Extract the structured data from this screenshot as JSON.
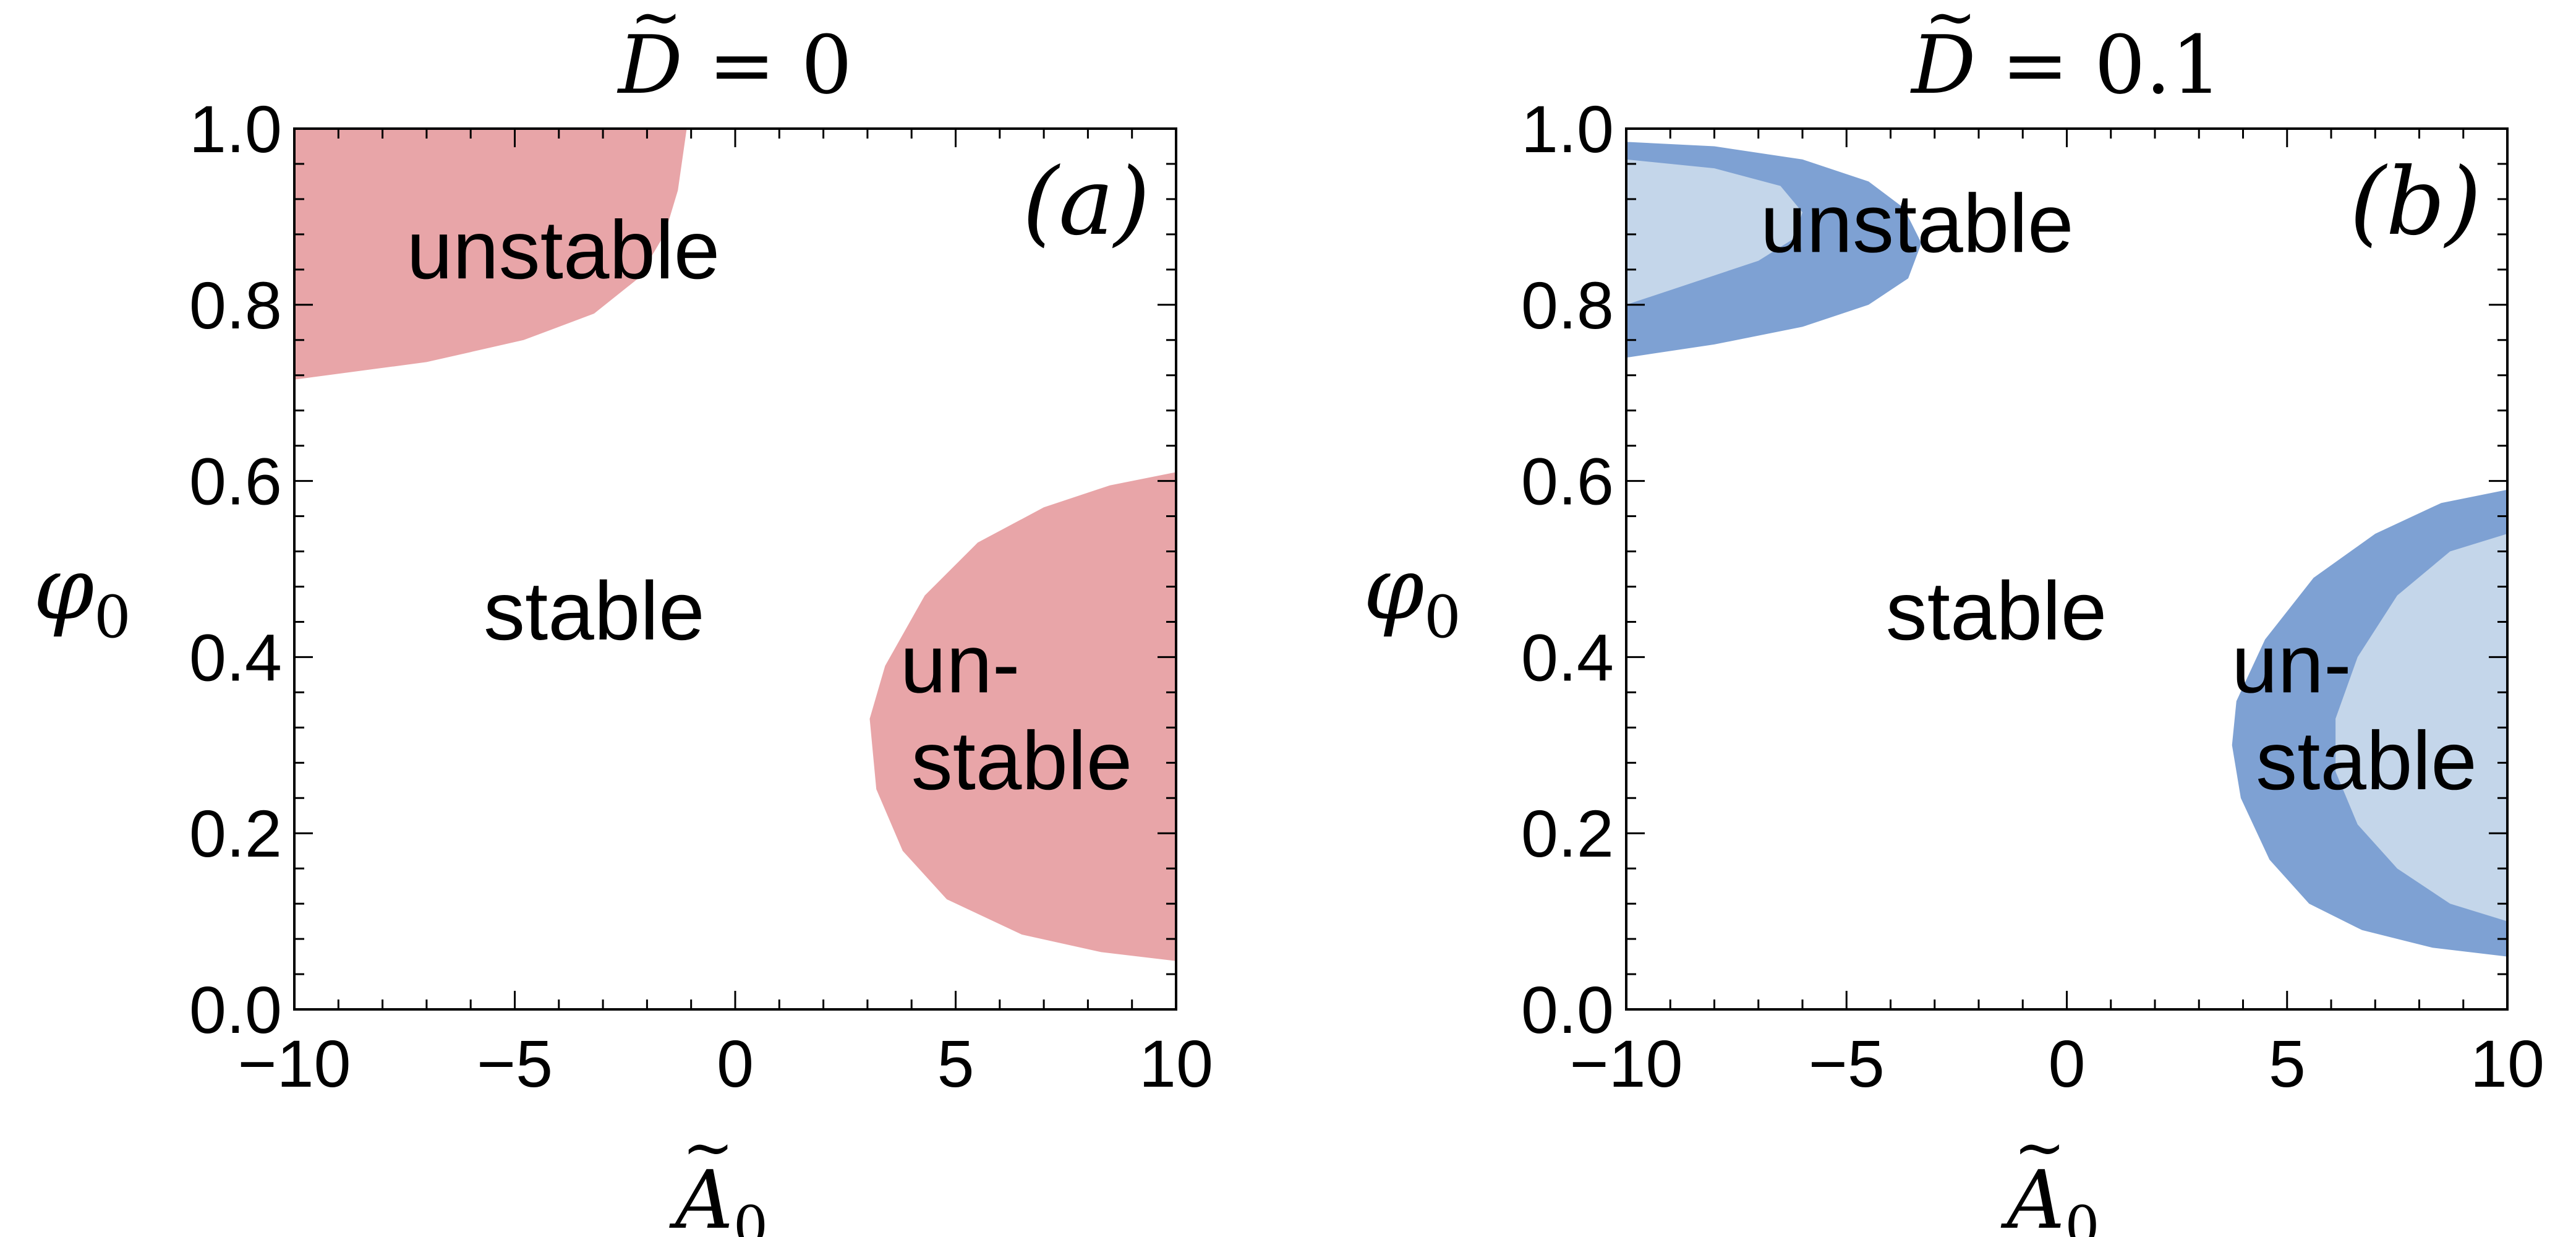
{
  "chart_data": [
    {
      "type": "area",
      "panel_label": "(a)",
      "title": {
        "symbol": "D",
        "mark": "~",
        "text": " = 0"
      },
      "xlabel": {
        "symbol": "A",
        "mark": "~",
        "sub": "0"
      },
      "ylabel": {
        "symbol": "φ",
        "sub": "0"
      },
      "xlim": [
        -10,
        10
      ],
      "ylim": [
        0,
        1
      ],
      "xticks": [
        -10,
        -5,
        0,
        5,
        10
      ],
      "xtick_labels": [
        "−10",
        "−5",
        "0",
        "5",
        "10"
      ],
      "yticks": [
        0,
        0.2,
        0.4,
        0.6,
        0.8,
        1.0
      ],
      "ytick_labels": [
        "0.0",
        "0.2",
        "0.4",
        "0.6",
        "0.8",
        "1.0"
      ],
      "grid": false,
      "colors": {
        "unstable": "#e8a5a8"
      },
      "regions": [
        {
          "class": "unstable",
          "boundary": [
            [
              -10,
              1.0
            ],
            [
              -1.1,
              1.0
            ],
            [
              -1.3,
              0.93
            ],
            [
              -1.6,
              0.88
            ],
            [
              -2.2,
              0.83
            ],
            [
              -3.2,
              0.79
            ],
            [
              -4.8,
              0.76
            ],
            [
              -7.0,
              0.735
            ],
            [
              -10,
              0.715
            ]
          ]
        },
        {
          "class": "unstable",
          "boundary": [
            [
              10,
              0.61
            ],
            [
              8.5,
              0.595
            ],
            [
              7.0,
              0.57
            ],
            [
              5.5,
              0.53
            ],
            [
              4.3,
              0.47
            ],
            [
              3.4,
              0.39
            ],
            [
              3.05,
              0.33
            ],
            [
              3.2,
              0.25
            ],
            [
              3.8,
              0.18
            ],
            [
              4.8,
              0.125
            ],
            [
              6.5,
              0.085
            ],
            [
              8.3,
              0.065
            ],
            [
              10,
              0.055
            ]
          ]
        }
      ],
      "annotations": [
        {
          "text": "unstable",
          "x": -3.9,
          "y": 0.83
        },
        {
          "text": "stable",
          "x": -3.2,
          "y": 0.42
        },
        {
          "text": "un-",
          "x": 5.1,
          "y": 0.36
        },
        {
          "text": "stable",
          "x": 6.5,
          "y": 0.25
        }
      ]
    },
    {
      "type": "area",
      "panel_label": "(b)",
      "title": {
        "symbol": "D",
        "mark": "~",
        "text": " = 0.1"
      },
      "xlabel": {
        "symbol": "A",
        "mark": "~",
        "sub": "0"
      },
      "ylabel": {
        "symbol": "φ",
        "sub": "0"
      },
      "xlim": [
        -10,
        10
      ],
      "ylim": [
        0,
        1
      ],
      "xticks": [
        -10,
        -5,
        0,
        5,
        10
      ],
      "xtick_labels": [
        "−10",
        "−5",
        "0",
        "5",
        "10"
      ],
      "yticks": [
        0,
        0.2,
        0.4,
        0.6,
        0.8,
        1.0
      ],
      "ytick_labels": [
        "0.0",
        "0.2",
        "0.4",
        "0.6",
        "0.8",
        "1.0"
      ],
      "grid": false,
      "colors": {
        "unstable_outer": "#7ea1d3",
        "unstable_inner": "#c4d6ea"
      },
      "regions": [
        {
          "class": "unstable_outer",
          "boundary": [
            [
              -10,
              0.985
            ],
            [
              -8.0,
              0.98
            ],
            [
              -6.0,
              0.965
            ],
            [
              -4.5,
              0.94
            ],
            [
              -3.7,
              0.91
            ],
            [
              -3.3,
              0.87
            ],
            [
              -3.6,
              0.83
            ],
            [
              -4.5,
              0.8
            ],
            [
              -6.0,
              0.775
            ],
            [
              -8.0,
              0.755
            ],
            [
              -10,
              0.74
            ]
          ]
        },
        {
          "class": "unstable_inner",
          "boundary": [
            [
              -10,
              0.965
            ],
            [
              -8.0,
              0.955
            ],
            [
              -6.5,
              0.935
            ],
            [
              -6.0,
              0.905
            ],
            [
              -6.2,
              0.875
            ],
            [
              -7.0,
              0.85
            ],
            [
              -8.5,
              0.825
            ],
            [
              -10,
              0.8
            ]
          ]
        },
        {
          "class": "unstable_outer",
          "boundary": [
            [
              10,
              0.59
            ],
            [
              8.5,
              0.575
            ],
            [
              7.0,
              0.54
            ],
            [
              5.6,
              0.49
            ],
            [
              4.5,
              0.42
            ],
            [
              3.85,
              0.35
            ],
            [
              3.75,
              0.3
            ],
            [
              3.95,
              0.24
            ],
            [
              4.6,
              0.17
            ],
            [
              5.5,
              0.12
            ],
            [
              6.7,
              0.09
            ],
            [
              8.3,
              0.07
            ],
            [
              10,
              0.06
            ]
          ]
        },
        {
          "class": "unstable_inner",
          "boundary": [
            [
              10,
              0.54
            ],
            [
              8.7,
              0.52
            ],
            [
              7.5,
              0.47
            ],
            [
              6.6,
              0.4
            ],
            [
              6.1,
              0.33
            ],
            [
              6.1,
              0.27
            ],
            [
              6.6,
              0.21
            ],
            [
              7.5,
              0.16
            ],
            [
              8.7,
              0.12
            ],
            [
              10,
              0.1
            ]
          ]
        }
      ],
      "annotations": [
        {
          "text": "unstable",
          "x": -3.4,
          "y": 0.86
        },
        {
          "text": "stable",
          "x": -1.6,
          "y": 0.42
        },
        {
          "text": "un-",
          "x": 5.1,
          "y": 0.36
        },
        {
          "text": "stable",
          "x": 6.8,
          "y": 0.25
        }
      ]
    }
  ]
}
